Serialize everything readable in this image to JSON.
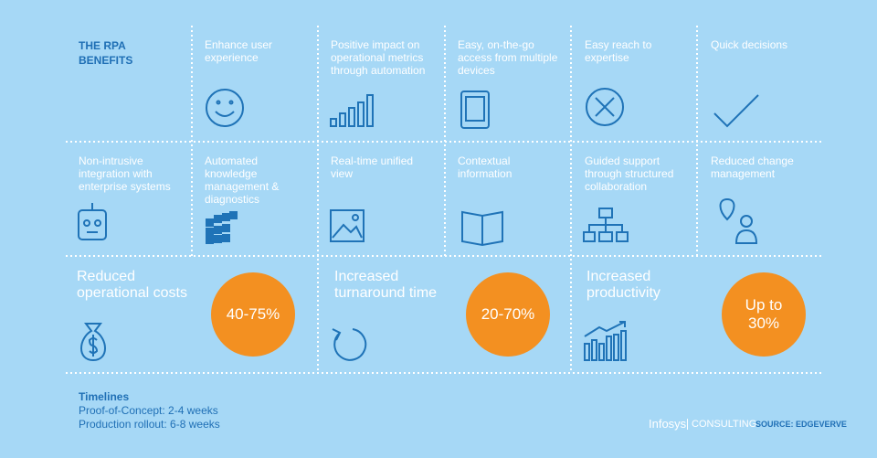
{
  "header": {
    "title": "THE RPA BENEFITS"
  },
  "benefits": [
    {
      "label": "Enhance user experience"
    },
    {
      "label": "Positive impact on operational metrics through automation"
    },
    {
      "label": "Easy, on-the-go access from multiple devices"
    },
    {
      "label": "Easy reach to expertise"
    },
    {
      "label": "Quick decisions"
    },
    {
      "label": "Non-intrusive integration with enterprise systems"
    },
    {
      "label": "Automated knowledge management & diagnostics"
    },
    {
      "label": "Real-time unified view"
    },
    {
      "label": "Contextual information"
    },
    {
      "label": "Guided support through structured collaboration"
    },
    {
      "label": "Reduced change management"
    }
  ],
  "metrics": [
    {
      "label": "Reduced operational costs",
      "value_label": "40-75%"
    },
    {
      "label": "Increased turnaround time",
      "value_label": "20-70%"
    },
    {
      "label": "Increased productivity",
      "value_label": "Up to 30%"
    }
  ],
  "timelines": {
    "title": "Timelines",
    "items": [
      "Proof-of-Concept: 2-4 weeks",
      "Production rollout: 6-8 weeks"
    ]
  },
  "footer": {
    "brand": "Infosys",
    "division": "CONSULTING",
    "source": "SOURCE: EDGEVERVE"
  }
}
